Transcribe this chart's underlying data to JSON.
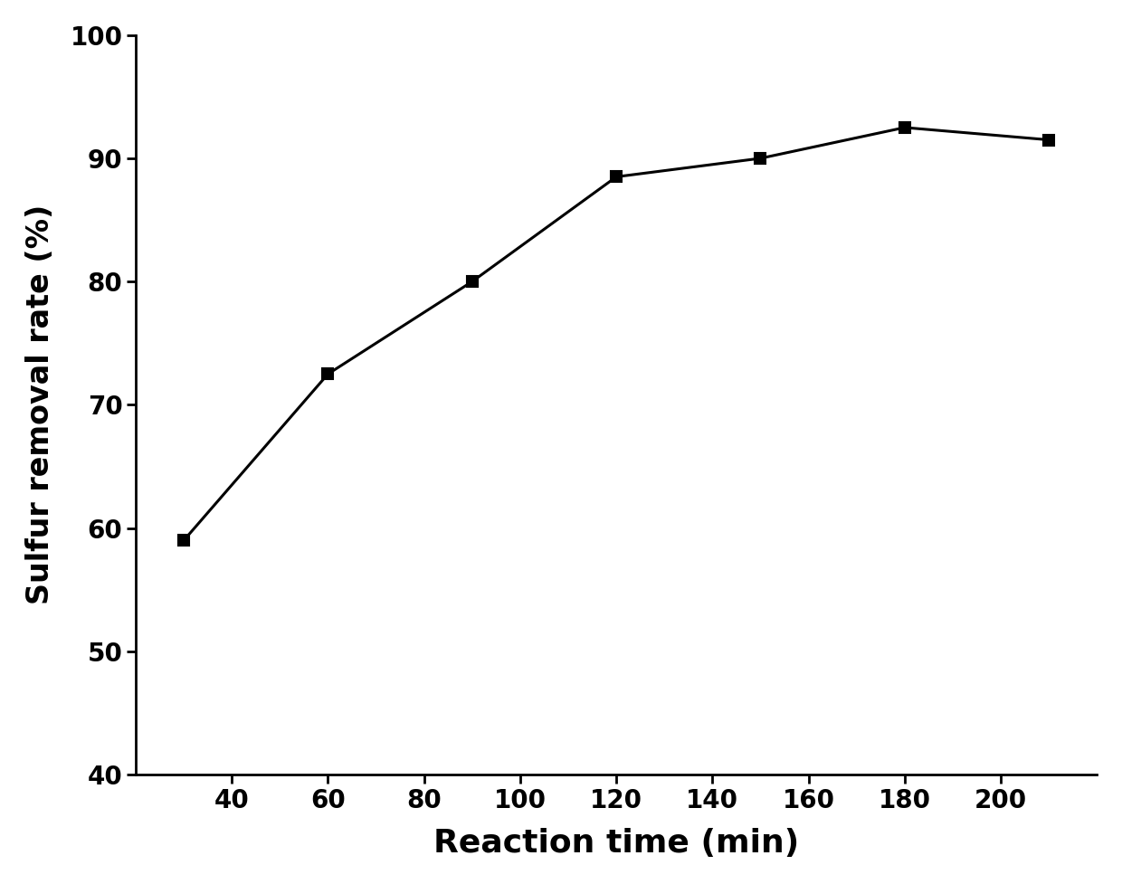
{
  "x": [
    30,
    60,
    90,
    120,
    150,
    180,
    210
  ],
  "y": [
    59,
    72.5,
    80,
    88.5,
    90,
    92.5,
    91.5
  ],
  "xlabel": "Reaction time (min)",
  "ylabel": "Sulfur removal rate (%)",
  "xlim": [
    20,
    220
  ],
  "ylim": [
    40,
    100
  ],
  "xticks": [
    40,
    60,
    80,
    100,
    120,
    140,
    160,
    180,
    200
  ],
  "yticks": [
    40,
    50,
    60,
    70,
    80,
    90,
    100
  ],
  "line_color": "#000000",
  "marker": "s",
  "marker_color": "#000000",
  "marker_size": 9,
  "line_width": 2.2,
  "xlabel_fontsize": 26,
  "ylabel_fontsize": 24,
  "tick_fontsize": 20,
  "background_color": "#ffffff",
  "tick_label_color": "#000000"
}
